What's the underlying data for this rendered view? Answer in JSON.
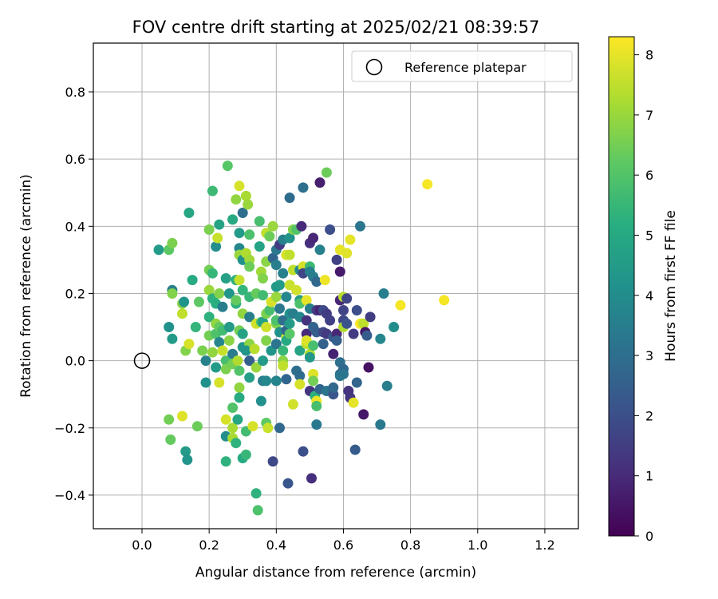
{
  "chart_data": {
    "type": "scatter",
    "title": "FOV centre drift starting at 2025/02/21 08:39:57",
    "xlabel": "Angular distance from reference (arcmin)",
    "ylabel": "Rotation from reference (arcmin)",
    "xlim": [
      -0.145,
      1.3
    ],
    "ylim": [
      -0.5,
      0.945
    ],
    "xticks": [
      0.0,
      0.2,
      0.4,
      0.6,
      0.8,
      1.0,
      1.2
    ],
    "xtick_labels": [
      "0.0",
      "0.2",
      "0.4",
      "0.6",
      "0.8",
      "1.0",
      "1.2"
    ],
    "yticks": [
      -0.4,
      -0.2,
      0.0,
      0.2,
      0.4,
      0.6,
      0.8
    ],
    "ytick_labels": [
      "−0.4",
      "−0.2",
      "0.0",
      "0.2",
      "0.4",
      "0.6",
      "0.8"
    ],
    "grid": true,
    "colormap": "viridis",
    "colorbar": {
      "label": "Hours from first FF file",
      "min": 0,
      "max": 8.3,
      "ticks": [
        0,
        1,
        2,
        3,
        4,
        5,
        6,
        7,
        8
      ],
      "tick_labels": [
        "0",
        "1",
        "2",
        "3",
        "4",
        "5",
        "6",
        "7",
        "8"
      ]
    },
    "legend": {
      "position": "top-right",
      "label": "Reference platepar"
    },
    "reference_point": {
      "x": 0.0,
      "y": 0.0,
      "marker": "open-circle"
    },
    "points": [
      [
        0.05,
        0.33,
        4.5
      ],
      [
        0.08,
        0.33,
        6.2
      ],
      [
        0.09,
        0.35,
        6.6
      ],
      [
        0.09,
        0.21,
        3.5
      ],
      [
        0.09,
        0.2,
        6.7
      ],
      [
        0.08,
        0.1,
        4.2
      ],
      [
        0.09,
        0.065,
        4.5
      ],
      [
        0.08,
        -0.175,
        6.5
      ],
      [
        0.085,
        -0.235,
        6.3
      ],
      [
        0.12,
        -0.165,
        7.9
      ],
      [
        0.13,
        -0.27,
        4.5
      ],
      [
        0.135,
        -0.295,
        4.3
      ],
      [
        0.14,
        0.44,
        4.9
      ],
      [
        0.12,
        0.17,
        6.8
      ],
      [
        0.12,
        0.14,
        7.5
      ],
      [
        0.125,
        0.175,
        4.3
      ],
      [
        0.13,
        0.03,
        6.7
      ],
      [
        0.14,
        0.05,
        7.8
      ],
      [
        0.15,
        0.24,
        5.0
      ],
      [
        0.16,
        0.1,
        5.4
      ],
      [
        0.17,
        0.175,
        6.2
      ],
      [
        0.165,
        -0.195,
        6.4
      ],
      [
        0.18,
        0.03,
        6.6
      ],
      [
        0.19,
        0.0,
        3.6
      ],
      [
        0.19,
        -0.065,
        4.2
      ],
      [
        0.2,
        0.13,
        5.3
      ],
      [
        0.2,
        0.075,
        6.5
      ],
      [
        0.21,
        0.025,
        6.9
      ],
      [
        0.2,
        0.21,
        7.0
      ],
      [
        0.2,
        0.27,
        6.5
      ],
      [
        0.21,
        0.26,
        5.5
      ],
      [
        0.2,
        0.39,
        6.6
      ],
      [
        0.21,
        0.505,
        5.6
      ],
      [
        0.21,
        0.185,
        5.3
      ],
      [
        0.22,
        0.17,
        5.2
      ],
      [
        0.22,
        0.08,
        5.9
      ],
      [
        0.22,
        0.11,
        6.9
      ],
      [
        0.22,
        -0.02,
        4.5
      ],
      [
        0.23,
        0.2,
        6.7
      ],
      [
        0.23,
        0.1,
        6.3
      ],
      [
        0.23,
        0.055,
        3.8
      ],
      [
        0.23,
        -0.065,
        7.8
      ],
      [
        0.22,
        0.34,
        4.0
      ],
      [
        0.225,
        0.365,
        7.6
      ],
      [
        0.23,
        0.405,
        4.8
      ],
      [
        0.24,
        0.16,
        3.5
      ],
      [
        0.24,
        0.09,
        5.7
      ],
      [
        0.24,
        0.03,
        7.6
      ],
      [
        0.25,
        0.0,
        5.8
      ],
      [
        0.25,
        -0.025,
        6.6
      ],
      [
        0.25,
        -0.175,
        7.8
      ],
      [
        0.25,
        -0.225,
        4.0
      ],
      [
        0.25,
        -0.3,
        5.3
      ],
      [
        0.255,
        0.58,
        6.1
      ],
      [
        0.25,
        0.245,
        4.7
      ],
      [
        0.26,
        0.2,
        4.3
      ],
      [
        0.26,
        0.1,
        4.5
      ],
      [
        0.26,
        0.06,
        6.8
      ],
      [
        0.27,
        0.02,
        3.4
      ],
      [
        0.27,
        -0.01,
        6.5
      ],
      [
        0.27,
        -0.14,
        6.0
      ],
      [
        0.27,
        -0.2,
        7.2
      ],
      [
        0.27,
        -0.23,
        7.2
      ],
      [
        0.27,
        0.42,
        5.0
      ],
      [
        0.28,
        0.48,
        6.9
      ],
      [
        0.28,
        0.24,
        5.3
      ],
      [
        0.28,
        0.17,
        5.3
      ],
      [
        0.28,
        0.18,
        6.3
      ],
      [
        0.285,
        0.0,
        7.3
      ],
      [
        0.28,
        -0.245,
        5.3
      ],
      [
        0.29,
        0.52,
        7.8
      ],
      [
        0.29,
        0.38,
        4.5
      ],
      [
        0.3,
        0.44,
        3.0
      ],
      [
        0.29,
        0.335,
        3.8
      ],
      [
        0.29,
        0.315,
        7.0
      ],
      [
        0.3,
        0.3,
        4.2
      ],
      [
        0.29,
        0.24,
        7.6
      ],
      [
        0.3,
        0.21,
        5.4
      ],
      [
        0.3,
        0.14,
        6.9
      ],
      [
        0.29,
        0.09,
        6.5
      ],
      [
        0.3,
        0.08,
        4.8
      ],
      [
        0.3,
        0.04,
        4.3
      ],
      [
        0.29,
        -0.03,
        6.0
      ],
      [
        0.29,
        -0.08,
        6.9
      ],
      [
        0.29,
        -0.11,
        5.0
      ],
      [
        0.285,
        -0.175,
        4.9
      ],
      [
        0.3,
        -0.29,
        5.0
      ],
      [
        0.31,
        0.49,
        7.2
      ],
      [
        0.315,
        0.465,
        7.0
      ],
      [
        0.31,
        0.32,
        7.3
      ],
      [
        0.32,
        0.3,
        7.1
      ],
      [
        0.32,
        0.375,
        5.9
      ],
      [
        0.32,
        0.28,
        6.4
      ],
      [
        0.32,
        0.19,
        5.5
      ],
      [
        0.32,
        0.13,
        3.5
      ],
      [
        0.32,
        0.05,
        6.8
      ],
      [
        0.31,
        0.03,
        4.3
      ],
      [
        0.32,
        0.0,
        2.5
      ],
      [
        0.32,
        -0.05,
        4.7
      ],
      [
        0.31,
        -0.21,
        5.7
      ],
      [
        0.31,
        -0.28,
        5.5
      ],
      [
        0.33,
        -0.195,
        7.8
      ],
      [
        0.335,
        0.035,
        7.4
      ],
      [
        0.34,
        0.2,
        6.3
      ],
      [
        0.34,
        0.11,
        7.7
      ],
      [
        0.34,
        -0.02,
        7.0
      ],
      [
        0.34,
        -0.395,
        5.3
      ],
      [
        0.345,
        -0.445,
        5.9
      ],
      [
        0.35,
        0.415,
        5.8
      ],
      [
        0.35,
        0.34,
        4.8
      ],
      [
        0.355,
        0.265,
        7.1
      ],
      [
        0.36,
        0.245,
        6.7
      ],
      [
        0.36,
        0.195,
        5.7
      ],
      [
        0.355,
        0.115,
        5.9
      ],
      [
        0.36,
        0.115,
        4.7
      ],
      [
        0.36,
        0.0,
        4.5
      ],
      [
        0.36,
        -0.06,
        3.5
      ],
      [
        0.355,
        -0.12,
        4.1
      ],
      [
        0.37,
        0.38,
        7.5
      ],
      [
        0.37,
        0.295,
        6.8
      ],
      [
        0.37,
        0.14,
        6.6
      ],
      [
        0.37,
        0.1,
        7.7
      ],
      [
        0.37,
        0.06,
        6.7
      ],
      [
        0.37,
        -0.06,
        3.8
      ],
      [
        0.37,
        -0.185,
        6.2
      ],
      [
        0.375,
        -0.2,
        7.6
      ],
      [
        0.38,
        0.37,
        6.4
      ],
      [
        0.38,
        0.15,
        5.8
      ],
      [
        0.385,
        0.175,
        7.8
      ],
      [
        0.385,
        0.03,
        4.3
      ],
      [
        0.39,
        0.4,
        7.0
      ],
      [
        0.39,
        0.305,
        2.7
      ],
      [
        0.4,
        0.33,
        3.3
      ],
      [
        0.4,
        0.285,
        3.5
      ],
      [
        0.4,
        0.22,
        4.4
      ],
      [
        0.4,
        0.19,
        7.0
      ],
      [
        0.4,
        0.11,
        6.7
      ],
      [
        0.4,
        0.12,
        5.9
      ],
      [
        0.4,
        0.05,
        3.2
      ],
      [
        0.4,
        -0.06,
        3.7
      ],
      [
        0.39,
        -0.3,
        1.8
      ],
      [
        0.41,
        0.345,
        1.5
      ],
      [
        0.41,
        0.225,
        4.5
      ],
      [
        0.41,
        0.155,
        3.3
      ],
      [
        0.41,
        0.085,
        4.2
      ],
      [
        0.41,
        -0.2,
        2.8
      ],
      [
        0.42,
        0.36,
        3.6
      ],
      [
        0.42,
        0.26,
        3.6
      ],
      [
        0.42,
        0.12,
        3.0
      ],
      [
        0.42,
        0.03,
        5.5
      ],
      [
        0.42,
        0.0,
        6.8
      ],
      [
        0.42,
        -0.015,
        7.5
      ],
      [
        0.43,
        0.315,
        7.8
      ],
      [
        0.43,
        0.19,
        3.8
      ],
      [
        0.43,
        0.07,
        7.8
      ],
      [
        0.43,
        0.06,
        5.0
      ],
      [
        0.43,
        0.09,
        2.7
      ],
      [
        0.43,
        -0.055,
        2.7
      ],
      [
        0.435,
        -0.365,
        2.2
      ],
      [
        0.44,
        0.485,
        2.9
      ],
      [
        0.44,
        0.365,
        4.2
      ],
      [
        0.44,
        0.315,
        7.5
      ],
      [
        0.44,
        0.225,
        7.6
      ],
      [
        0.44,
        0.14,
        4.1
      ],
      [
        0.44,
        0.11,
        4.5
      ],
      [
        0.44,
        0.08,
        6.1
      ],
      [
        0.45,
        0.39,
        6.7
      ],
      [
        0.45,
        0.27,
        7.5
      ],
      [
        0.45,
        0.14,
        3.5
      ],
      [
        0.45,
        -0.13,
        7.7
      ],
      [
        0.46,
        0.39,
        6.0
      ],
      [
        0.46,
        0.21,
        7.7
      ],
      [
        0.46,
        -0.03,
        3.0
      ],
      [
        0.47,
        0.27,
        3.9
      ],
      [
        0.47,
        0.18,
        4.5
      ],
      [
        0.47,
        0.17,
        5.9
      ],
      [
        0.47,
        0.13,
        3.8
      ],
      [
        0.47,
        0.03,
        4.8
      ],
      [
        0.47,
        -0.045,
        2.9
      ],
      [
        0.47,
        -0.07,
        7.8
      ],
      [
        0.475,
        0.4,
        1.0
      ],
      [
        0.48,
        0.28,
        7.8
      ],
      [
        0.48,
        0.26,
        1.7
      ],
      [
        0.48,
        0.515,
        3.0
      ],
      [
        0.48,
        -0.27,
        2.0
      ],
      [
        0.49,
        0.18,
        8.0
      ],
      [
        0.49,
        0.12,
        1.2
      ],
      [
        0.49,
        0.08,
        1.0
      ],
      [
        0.49,
        0.05,
        7.5
      ],
      [
        0.49,
        0.06,
        7.9
      ],
      [
        0.5,
        0.35,
        1.1
      ],
      [
        0.5,
        0.28,
        5.6
      ],
      [
        0.5,
        0.265,
        3.6
      ],
      [
        0.5,
        0.155,
        3.5
      ],
      [
        0.5,
        0.02,
        7.3
      ],
      [
        0.5,
        0.01,
        4.4
      ],
      [
        0.5,
        -0.09,
        1.3
      ],
      [
        0.505,
        -0.35,
        1.1
      ],
      [
        0.51,
        0.365,
        0.9
      ],
      [
        0.51,
        0.25,
        3.5
      ],
      [
        0.51,
        0.1,
        2.7
      ],
      [
        0.51,
        0.045,
        5.8
      ],
      [
        0.51,
        -0.04,
        7.9
      ],
      [
        0.51,
        -0.06,
        6.5
      ],
      [
        0.515,
        -0.105,
        5.3
      ],
      [
        0.52,
        0.235,
        2.8
      ],
      [
        0.52,
        0.15,
        1.5
      ],
      [
        0.52,
        0.085,
        2.5
      ],
      [
        0.52,
        -0.12,
        8.1
      ],
      [
        0.52,
        -0.135,
        5.8
      ],
      [
        0.52,
        -0.19,
        3.3
      ],
      [
        0.53,
        0.53,
        0.7
      ],
      [
        0.53,
        0.33,
        3.6
      ],
      [
        0.53,
        0.15,
        0.8
      ],
      [
        0.53,
        -0.085,
        2.7
      ],
      [
        0.54,
        0.15,
        1.9
      ],
      [
        0.54,
        0.085,
        1.8
      ],
      [
        0.54,
        0.05,
        2.6
      ],
      [
        0.545,
        0.24,
        8.1
      ],
      [
        0.55,
        0.56,
        6.4
      ],
      [
        0.55,
        0.14,
        1.5
      ],
      [
        0.55,
        0.08,
        1.4
      ],
      [
        0.55,
        -0.09,
        3.2
      ],
      [
        0.56,
        0.12,
        1.6
      ],
      [
        0.56,
        0.39,
        2.0
      ],
      [
        0.57,
        0.07,
        2.3
      ],
      [
        0.57,
        0.02,
        0.8
      ],
      [
        0.57,
        -0.1,
        2.2
      ],
      [
        0.57,
        -0.08,
        2.8
      ],
      [
        0.58,
        0.3,
        1.6
      ],
      [
        0.58,
        0.08,
        0.9
      ],
      [
        0.58,
        0.06,
        2.5
      ],
      [
        0.59,
        0.18,
        0.9
      ],
      [
        0.59,
        0.33,
        8.0
      ],
      [
        0.59,
        0.265,
        0.6
      ],
      [
        0.59,
        -0.04,
        3.1
      ],
      [
        0.59,
        -0.005,
        3.0
      ],
      [
        0.59,
        -0.045,
        3.3
      ],
      [
        0.6,
        0.15,
        1.7
      ],
      [
        0.6,
        0.12,
        1.8
      ],
      [
        0.6,
        0.1,
        7.3
      ],
      [
        0.6,
        0.19,
        7.4
      ],
      [
        0.6,
        -0.025,
        2.8
      ],
      [
        0.6,
        -0.04,
        3.2
      ],
      [
        0.61,
        0.185,
        1.7
      ],
      [
        0.61,
        0.32,
        7.9
      ],
      [
        0.61,
        0.11,
        2.1
      ],
      [
        0.615,
        -0.09,
        1.2
      ],
      [
        0.62,
        0.36,
        8.0
      ],
      [
        0.62,
        -0.11,
        1.3
      ],
      [
        0.63,
        0.08,
        1.5
      ],
      [
        0.63,
        -0.125,
        8.0
      ],
      [
        0.635,
        -0.265,
        2.4
      ],
      [
        0.64,
        0.15,
        2.0
      ],
      [
        0.64,
        -0.065,
        2.7
      ],
      [
        0.65,
        0.4,
        3.2
      ],
      [
        0.65,
        0.11,
        8.2
      ],
      [
        0.66,
        0.11,
        7.5
      ],
      [
        0.66,
        -0.16,
        0.5
      ],
      [
        0.665,
        0.085,
        0.5
      ],
      [
        0.67,
        0.075,
        2.4
      ],
      [
        0.675,
        -0.02,
        0.4
      ],
      [
        0.68,
        0.13,
        1.5
      ],
      [
        0.71,
        0.065,
        3.8
      ],
      [
        0.71,
        -0.19,
        3.3
      ],
      [
        0.72,
        0.2,
        3.5
      ],
      [
        0.73,
        -0.075,
        3.5
      ],
      [
        0.75,
        0.1,
        4.0
      ],
      [
        0.77,
        0.165,
        8.2
      ],
      [
        0.85,
        0.525,
        8.2
      ],
      [
        0.9,
        0.18,
        8.2
      ]
    ]
  }
}
